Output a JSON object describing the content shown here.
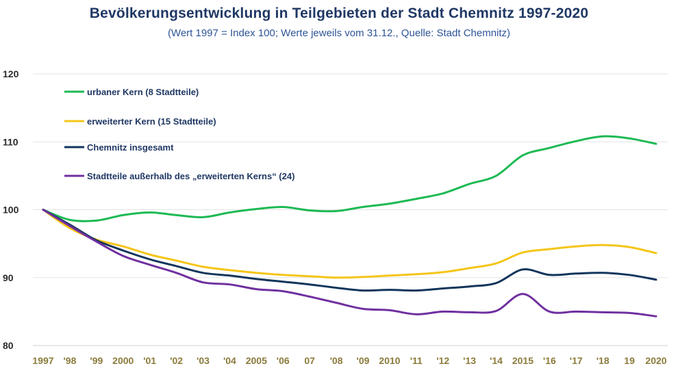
{
  "chart_data": {
    "type": "line",
    "title": "Bevölkerungsentwicklung in Teilgebieten der Stadt Chemnitz 1997-2020",
    "subtitle": "(Wert 1997 = Index 100; Werte jeweils vom 31.12., Quelle: Stadt Chemnitz)",
    "xlabel": "",
    "ylabel": "",
    "ylim": [
      80,
      120
    ],
    "yticks": [
      "80",
      "90",
      "100",
      "110",
      "120"
    ],
    "categories": [
      "1997",
      "'98",
      "'99",
      "2000",
      "'01",
      "'02",
      "'03",
      "'04",
      "2005",
      "'06",
      "07",
      "'08",
      "'09",
      "2010",
      "'11",
      "'12",
      "'13",
      "'14",
      "2015",
      "'16",
      "'17",
      "'18",
      "19",
      "2020"
    ],
    "legend_position": "top-left",
    "grid": true,
    "series": [
      {
        "name": "urbaner Kern (8 Stadtteile)",
        "color": "#1db954",
        "values": [
          100,
          98.5,
          98.4,
          99.2,
          99.6,
          99.2,
          98.9,
          99.6,
          100.1,
          100.4,
          99.9,
          99.8,
          100.4,
          100.9,
          101.6,
          102.4,
          103.8,
          105.0,
          108.0,
          109.1,
          110.1,
          110.8,
          110.5,
          109.7
        ]
      },
      {
        "name": "erweiterter Kern (15 Stadtteile)",
        "color": "#f5c518",
        "values": [
          100,
          97.3,
          95.6,
          94.6,
          93.4,
          92.5,
          91.6,
          91.1,
          90.7,
          90.4,
          90.2,
          90.0,
          90.1,
          90.3,
          90.5,
          90.8,
          91.4,
          92.1,
          93.7,
          94.2,
          94.6,
          94.8,
          94.5,
          93.6
        ]
      },
      {
        "name": "Chemnitz insgesamt",
        "color": "#12355b",
        "values": [
          100,
          97.8,
          95.5,
          94.0,
          92.7,
          91.7,
          90.7,
          90.3,
          89.8,
          89.4,
          89.0,
          88.5,
          88.1,
          88.2,
          88.1,
          88.4,
          88.7,
          89.2,
          91.2,
          90.4,
          90.6,
          90.7,
          90.4,
          89.7
        ]
      },
      {
        "name": "Stadtteile außerhalb  des „erweiterten  Kerns“ (24)",
        "color": "#7030a0",
        "values": [
          100,
          97.6,
          95.3,
          93.2,
          91.9,
          90.7,
          89.3,
          89.0,
          88.3,
          88.0,
          87.2,
          86.3,
          85.4,
          85.2,
          84.6,
          85.0,
          84.9,
          85.1,
          87.6,
          85.0,
          85.0,
          84.9,
          84.8,
          84.3
        ]
      }
    ]
  }
}
